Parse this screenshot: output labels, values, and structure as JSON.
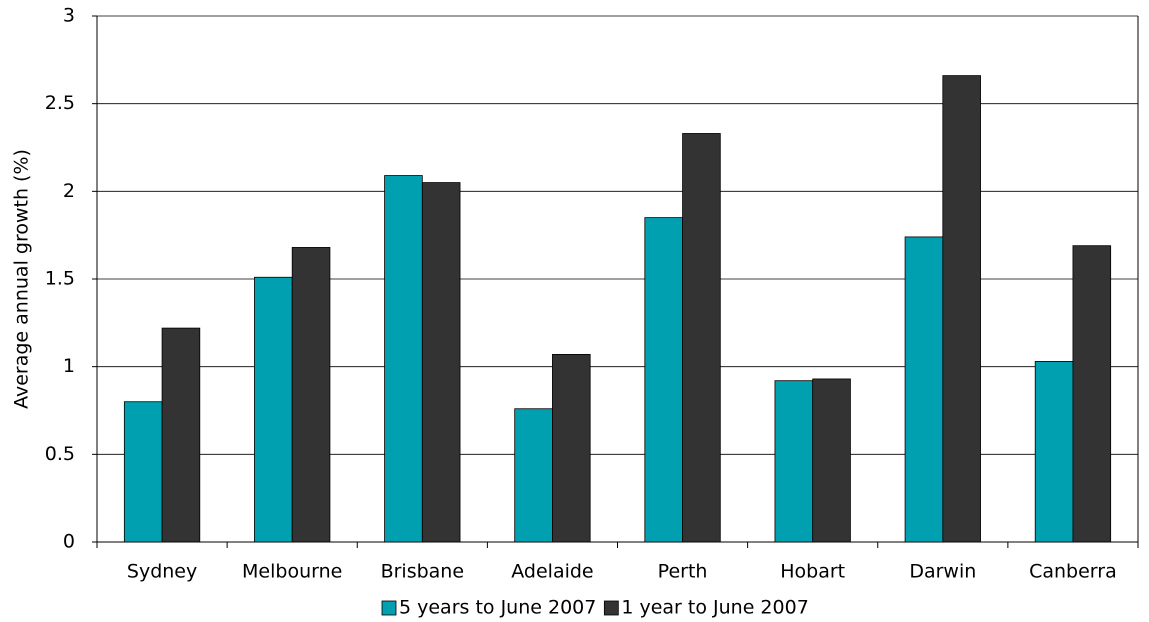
{
  "chart_data": {
    "type": "bar",
    "y_label": "Average annual growth (%)",
    "categories": [
      "Sydney",
      "Melbourne",
      "Brisbane",
      "Adelaide",
      "Perth",
      "Hobart",
      "Darwin",
      "Canberra"
    ],
    "series": [
      {
        "name": "5 years to June 2007",
        "color": "#00a0b0",
        "values": [
          0.8,
          1.51,
          2.09,
          0.76,
          1.85,
          0.92,
          1.74,
          1.03
        ]
      },
      {
        "name": "1 year to June 2007",
        "color": "#333333",
        "values": [
          1.22,
          1.68,
          2.05,
          1.07,
          2.33,
          0.93,
          2.66,
          1.69
        ]
      }
    ],
    "ylim": [
      0,
      3
    ],
    "yticks": [
      0,
      0.5,
      1,
      1.5,
      2,
      2.5,
      3
    ],
    "grid": true,
    "legend": "bottom"
  }
}
